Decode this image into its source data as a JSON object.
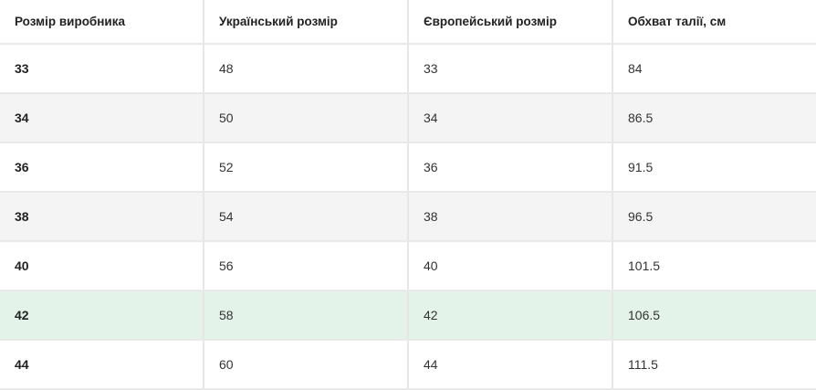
{
  "table": {
    "headers": [
      "Розмір виробника",
      "Український розмір",
      "Європейський розмір",
      "Обхват талії, см"
    ],
    "rows": [
      [
        "33",
        "48",
        "33",
        "84"
      ],
      [
        "34",
        "50",
        "34",
        "86.5"
      ],
      [
        "36",
        "52",
        "36",
        "91.5"
      ],
      [
        "38",
        "54",
        "38",
        "96.5"
      ],
      [
        "40",
        "56",
        "40",
        "101.5"
      ],
      [
        "42",
        "58",
        "42",
        "106.5"
      ],
      [
        "44",
        "60",
        "44",
        "111.5"
      ]
    ],
    "highlighted_row": "42",
    "colors": {
      "striped_row": "#f4f4f4",
      "highlight_row": "#e4f3ea",
      "border": "#e6e6e6"
    }
  }
}
